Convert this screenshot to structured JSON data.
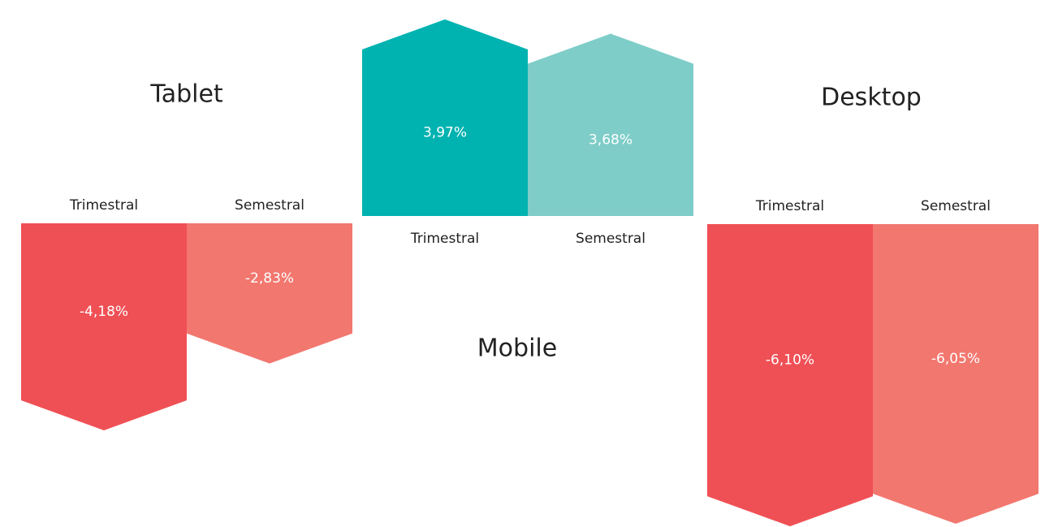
{
  "chart_data": [
    {
      "type": "arrow-bar",
      "title": "Tablet",
      "categories": [
        "Trimestral",
        "Semestral"
      ],
      "values": [
        -4.18,
        -2.83
      ],
      "value_labels": [
        "-4,18%",
        "-2,83%"
      ],
      "colors": [
        "#ef5055",
        "#f2776f"
      ]
    },
    {
      "type": "arrow-bar",
      "title": "Mobile",
      "categories": [
        "Trimestral",
        "Semestral"
      ],
      "values": [
        3.97,
        3.68
      ],
      "value_labels": [
        "3,97%",
        "3,68%"
      ],
      "colors": [
        "#00b3b0",
        "#7ecdc8"
      ]
    },
    {
      "type": "arrow-bar",
      "title": "Desktop",
      "categories": [
        "Trimestral",
        "Semestral"
      ],
      "values": [
        -6.1,
        -6.05
      ],
      "value_labels": [
        "-6,10%",
        "-6,05%"
      ],
      "colors": [
        "#ef5055",
        "#f2776f"
      ]
    }
  ]
}
